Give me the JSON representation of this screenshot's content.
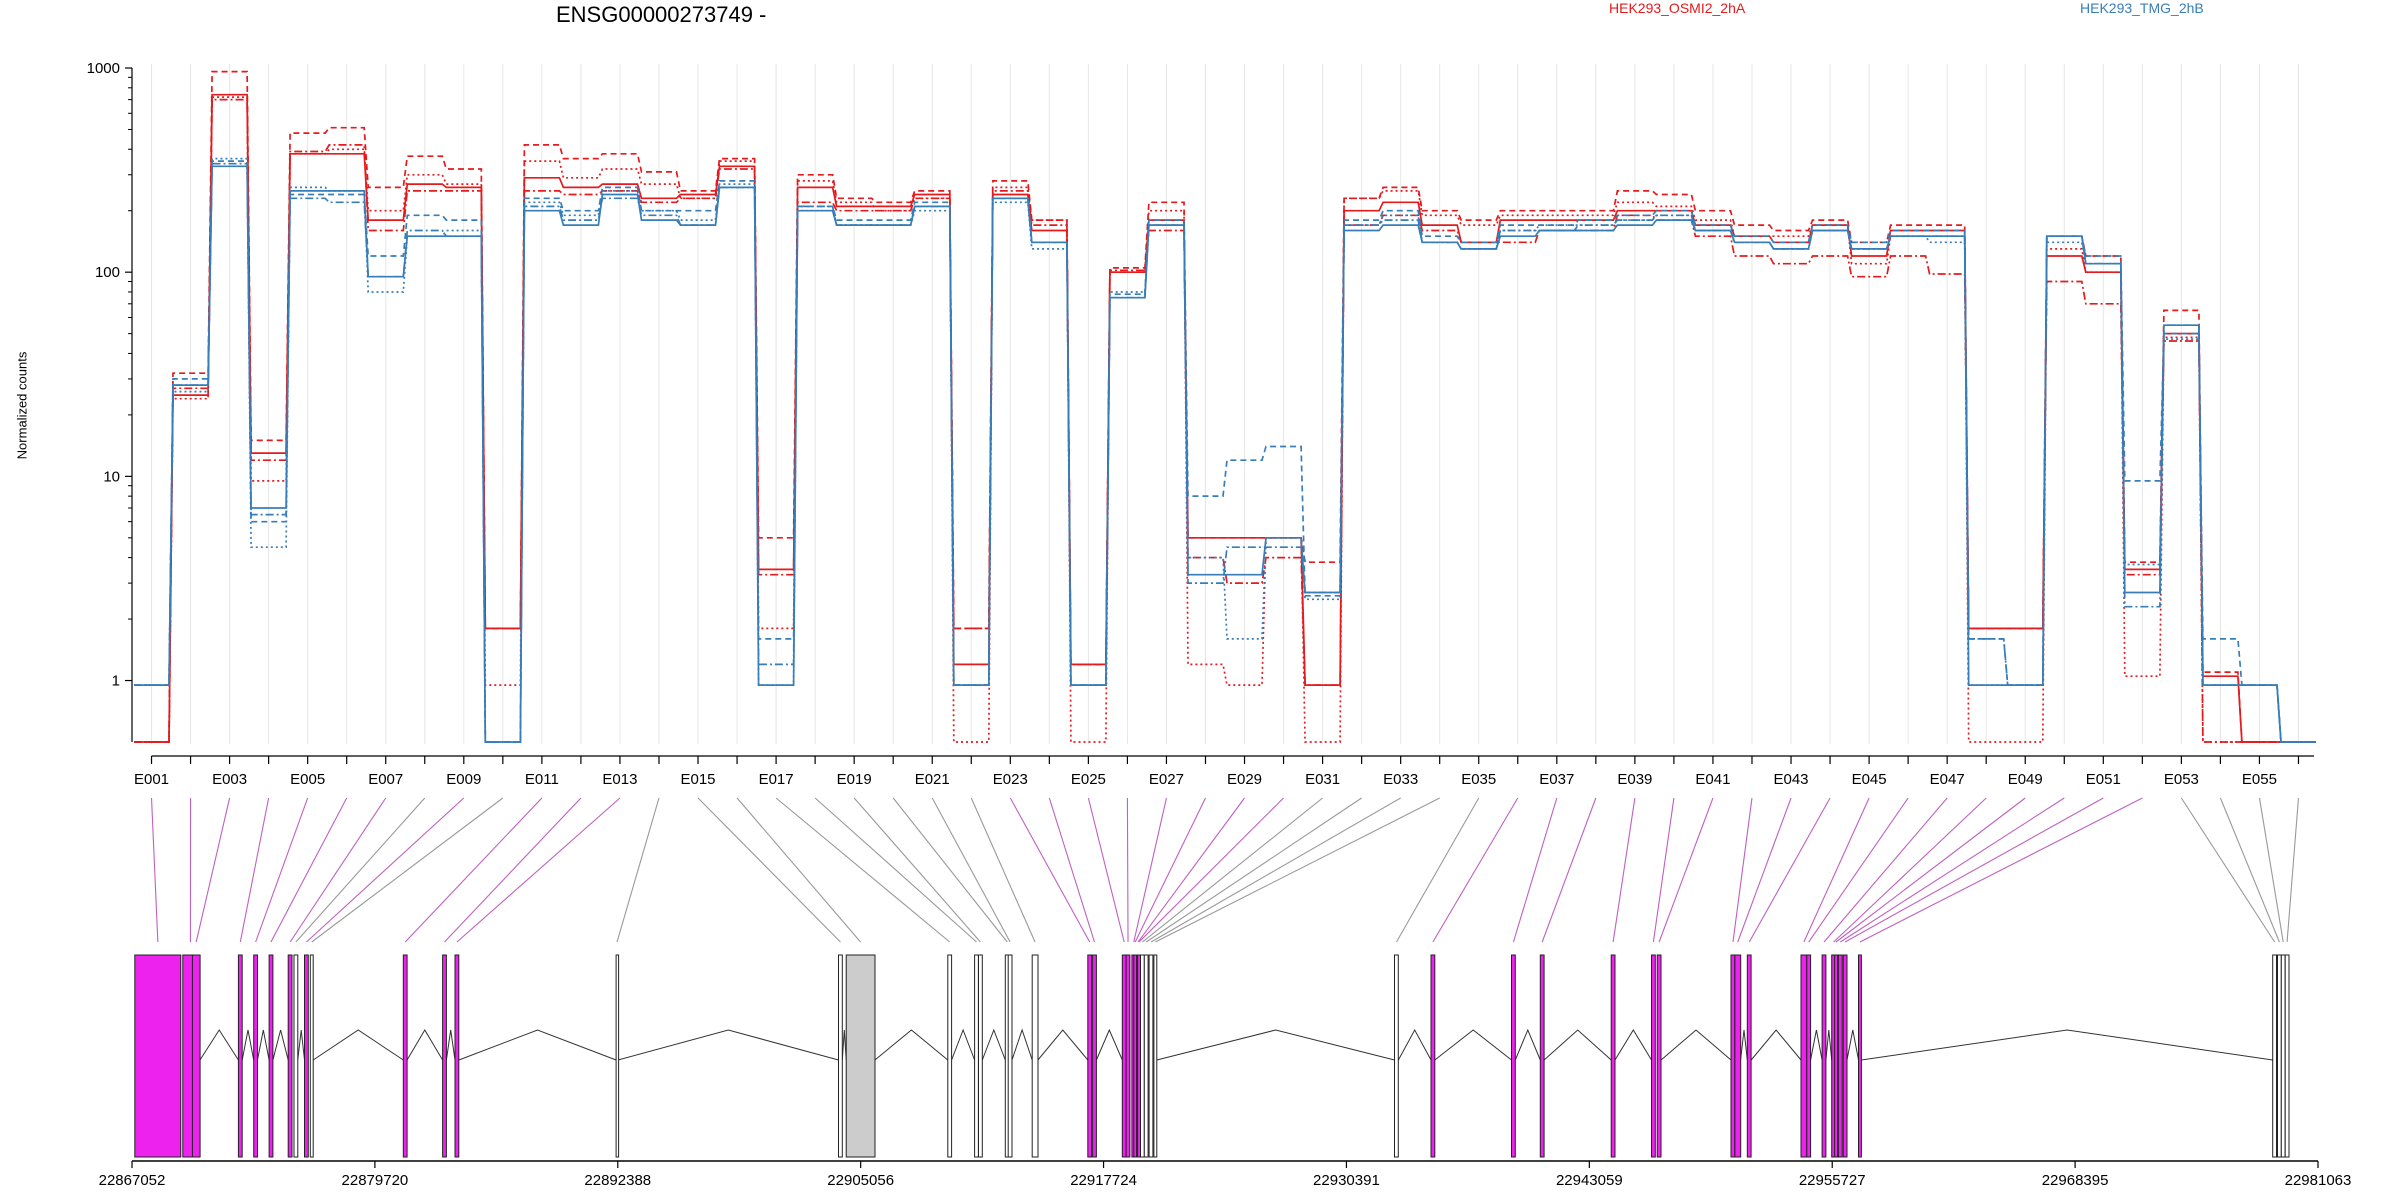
{
  "header": {
    "title": "ENSG00000273749 -",
    "legend": [
      {
        "name": "HEK293_OSMI2_2hA",
        "color": "#E41A1C"
      },
      {
        "name": "HEK293_TMG_2hB",
        "color": "#377EB8"
      }
    ]
  },
  "chart_data": {
    "type": "line",
    "title": "ENSG00000273749 -",
    "ylabel": "Normalized counts",
    "xlabel": "",
    "yscale": "log",
    "yticks": [
      "1",
      "10",
      "100",
      "1000"
    ],
    "ylim": [
      0.5,
      1000
    ],
    "grid": false,
    "exons": [
      "E001",
      "E002",
      "E003",
      "E004",
      "E005",
      "E006",
      "E007",
      "E008",
      "E009",
      "E010",
      "E011",
      "E012",
      "E013",
      "E014",
      "E015",
      "E016",
      "E017",
      "E018",
      "E019",
      "E020",
      "E021",
      "E022",
      "E023",
      "E024",
      "E025",
      "E026",
      "E027",
      "E028",
      "E029",
      "E030",
      "E031",
      "E032",
      "E033",
      "E034",
      "E035",
      "E036",
      "E037",
      "E038",
      "E039",
      "E040",
      "E041",
      "E042",
      "E043",
      "E044",
      "E045",
      "E046",
      "E047",
      "E048",
      "E049",
      "E050",
      "E051",
      "E052",
      "E053",
      "E054",
      "E055",
      "E056"
    ],
    "exon_tick_labels": [
      "E001",
      "E003",
      "E005",
      "E007",
      "E009",
      "E011",
      "E013",
      "E015",
      "E017",
      "E019",
      "E021",
      "E023",
      "E025",
      "E027",
      "E029",
      "E031",
      "E033",
      "E035",
      "E037",
      "E039",
      "E041",
      "E043",
      "E045",
      "E047",
      "E049",
      "E051",
      "E053",
      "E055"
    ],
    "series": [
      {
        "name": "HEK293_OSMI2_2hA",
        "color": "#E41A1C",
        "style": "solid",
        "values": [
          0.5,
          25,
          740,
          13,
          380,
          380,
          180,
          270,
          260,
          1.8,
          290,
          260,
          270,
          230,
          240,
          330,
          3.5,
          260,
          210,
          210,
          240,
          1.2,
          240,
          160,
          1.2,
          100,
          180,
          5,
          5,
          5,
          0.95,
          200,
          220,
          170,
          140,
          180,
          180,
          180,
          200,
          200,
          170,
          150,
          140,
          170,
          120,
          160,
          160,
          1.8,
          1.8,
          120,
          100,
          3.5,
          50,
          1.05,
          0.5,
          0.5
        ]
      },
      {
        "name": "HEK293_OSMI2_2hA",
        "color": "#E41A1C",
        "style": "dashed",
        "values": [
          0.5,
          32,
          960,
          15,
          480,
          510,
          260,
          370,
          320,
          1.8,
          420,
          360,
          380,
          310,
          250,
          360,
          5,
          300,
          230,
          220,
          250,
          1.8,
          280,
          180,
          1.2,
          105,
          220,
          5,
          5,
          5,
          3.8,
          230,
          260,
          200,
          180,
          200,
          200,
          200,
          250,
          240,
          200,
          170,
          160,
          180,
          140,
          170,
          170,
          1.8,
          1.8,
          150,
          120,
          3.8,
          65,
          1.1,
          0.5,
          0.5
        ]
      },
      {
        "name": "HEK293_OSMI2_2hA",
        "color": "#E41A1C",
        "style": "dotted",
        "values": [
          0.5,
          24,
          720,
          9.5,
          380,
          400,
          200,
          300,
          270,
          0.95,
          350,
          290,
          320,
          270,
          230,
          350,
          1.8,
          280,
          220,
          200,
          230,
          0.5,
          260,
          180,
          0.5,
          100,
          200,
          1.2,
          0.95,
          5,
          0.5,
          230,
          250,
          190,
          170,
          190,
          190,
          190,
          220,
          210,
          180,
          150,
          150,
          170,
          110,
          150,
          150,
          0.5,
          0.5,
          130,
          100,
          1.05,
          48,
          0.5,
          0.5,
          0.5
        ]
      },
      {
        "name": "HEK293_OSMI2_2hA",
        "color": "#E41A1C",
        "style": "dashdot",
        "values": [
          0.5,
          27,
          700,
          12,
          390,
          420,
          160,
          250,
          250,
          1.8,
          250,
          240,
          250,
          220,
          230,
          320,
          3.3,
          220,
          200,
          200,
          230,
          1.8,
          250,
          170,
          1.2,
          102,
          160,
          4,
          3,
          4,
          0.95,
          170,
          190,
          160,
          140,
          140,
          160,
          160,
          190,
          180,
          150,
          120,
          110,
          120,
          95,
          120,
          98,
          1.8,
          1.8,
          90,
          70,
          3.3,
          46,
          0.5,
          0.5,
          0.5
        ]
      },
      {
        "name": "HEK293_TMG_2hB",
        "color": "#377EB8",
        "style": "solid",
        "values": [
          0.95,
          28,
          330,
          7,
          250,
          250,
          95,
          150,
          150,
          0.5,
          200,
          170,
          240,
          180,
          170,
          260,
          0.95,
          200,
          170,
          170,
          210,
          0.95,
          230,
          140,
          0.95,
          75,
          170,
          3.3,
          3.3,
          5,
          2.7,
          160,
          170,
          140,
          130,
          150,
          160,
          160,
          170,
          180,
          160,
          140,
          130,
          160,
          130,
          150,
          150,
          0.95,
          0.95,
          150,
          110,
          2.7,
          55,
          0.95,
          0.95,
          0.5
        ]
      },
      {
        "name": "HEK293_TMG_2hB",
        "color": "#377EB8",
        "style": "dashed",
        "values": [
          0.95,
          30,
          350,
          6,
          240,
          240,
          120,
          190,
          180,
          0.5,
          230,
          200,
          260,
          200,
          200,
          280,
          1.6,
          210,
          180,
          180,
          220,
          0.95,
          230,
          140,
          0.95,
          78,
          180,
          8,
          12,
          14,
          2.6,
          180,
          200,
          150,
          140,
          170,
          170,
          180,
          190,
          200,
          170,
          150,
          140,
          170,
          140,
          160,
          160,
          1.6,
          0.95,
          150,
          120,
          9.5,
          50,
          1.6,
          0.95,
          0.5
        ]
      },
      {
        "name": "HEK293_TMG_2hB",
        "color": "#377EB8",
        "style": "dotted",
        "values": [
          0.95,
          26,
          360,
          4.5,
          260,
          250,
          80,
          150,
          160,
          0.5,
          220,
          190,
          250,
          200,
          180,
          270,
          0.95,
          200,
          170,
          170,
          200,
          0.95,
          220,
          130,
          0.95,
          80,
          170,
          4,
          1.6,
          5,
          2.5,
          170,
          190,
          140,
          130,
          160,
          170,
          170,
          180,
          190,
          160,
          140,
          130,
          160,
          130,
          150,
          140,
          0.95,
          0.95,
          140,
          110,
          3.7,
          47,
          0.95,
          0.95,
          0.5
        ]
      },
      {
        "name": "HEK293_TMG_2hB",
        "color": "#377EB8",
        "style": "dashdot",
        "values": [
          0.95,
          28,
          340,
          6.5,
          230,
          220,
          95,
          160,
          150,
          0.5,
          210,
          180,
          230,
          190,
          170,
          260,
          1.2,
          210,
          170,
          170,
          210,
          0.95,
          230,
          140,
          0.95,
          75,
          170,
          3,
          4.5,
          4.5,
          2.7,
          170,
          180,
          140,
          130,
          160,
          160,
          170,
          180,
          190,
          160,
          140,
          130,
          160,
          130,
          150,
          150,
          1.6,
          0.95,
          150,
          110,
          2.3,
          55,
          0.95,
          0.95,
          0.5
        ]
      }
    ]
  },
  "gene_model": {
    "coordinates": [
      "22867052",
      "22879720",
      "22892388",
      "22905056",
      "22917724",
      "22930391",
      "22943059",
      "22955727",
      "22968395",
      "22981063"
    ],
    "genomic_range": [
      22867052,
      22981063
    ],
    "exon_starts": [
      22867200,
      22869700,
      22870200,
      22872600,
      22873400,
      22874200,
      22875200,
      22875500,
      22876050,
      22876350,
      22881200,
      22883250,
      22883900,
      22892300,
      22903900,
      22904300,
      22909600,
      22911000,
      22911200,
      22912600,
      22912750,
      22914000,
      22916900,
      22917150,
      22918700,
      22918900,
      22919200,
      22919300,
      22919450,
      22919500,
      22919650,
      22919850,
      22920100,
      22920350,
      22932900,
      22934800,
      22939000,
      22940500,
      22944200,
      22946300,
      22946600,
      22950450,
      22950650,
      22951300,
      22954100,
      22954400,
      22955200,
      22955700,
      22955850,
      22956050,
      22956300,
      22957100,
      22978700,
      22978950,
      22979150,
      22979350
    ],
    "exon_widths": [
      2400,
      800,
      400,
      200,
      200,
      200,
      200,
      200,
      200,
      150,
      200,
      200,
      200,
      100,
      200,
      1500,
      200,
      200,
      200,
      200,
      200,
      300,
      200,
      200,
      200,
      200,
      200,
      150,
      150,
      150,
      200,
      200,
      200,
      150,
      200,
      200,
      200,
      200,
      200,
      200,
      200,
      200,
      300,
      200,
      300,
      200,
      200,
      200,
      150,
      200,
      200,
      150,
      200,
      200,
      200,
      200
    ],
    "exon_highlight": [
      true,
      true,
      true,
      true,
      true,
      true,
      true,
      false,
      true,
      false,
      true,
      true,
      true,
      false,
      false,
      false,
      false,
      false,
      false,
      false,
      false,
      false,
      true,
      true,
      true,
      true,
      true,
      true,
      true,
      true,
      false,
      false,
      false,
      false,
      false,
      true,
      true,
      true,
      true,
      true,
      true,
      true,
      true,
      true,
      true,
      true,
      true,
      true,
      true,
      true,
      true,
      true,
      false,
      false,
      false,
      false
    ],
    "exon_grey": [
      false,
      false,
      false,
      false,
      false,
      false,
      false,
      false,
      false,
      false,
      false,
      false,
      false,
      false,
      false,
      true,
      false,
      false,
      false,
      false,
      false,
      false,
      false,
      false,
      false,
      false,
      false,
      false,
      false,
      false,
      false,
      false,
      false,
      false,
      false,
      false,
      false,
      false,
      false,
      false,
      false,
      false,
      false,
      false,
      false,
      false,
      false,
      false,
      false,
      false,
      false,
      false,
      false,
      false,
      false,
      false
    ],
    "highlight_color": "#EE22EE"
  }
}
